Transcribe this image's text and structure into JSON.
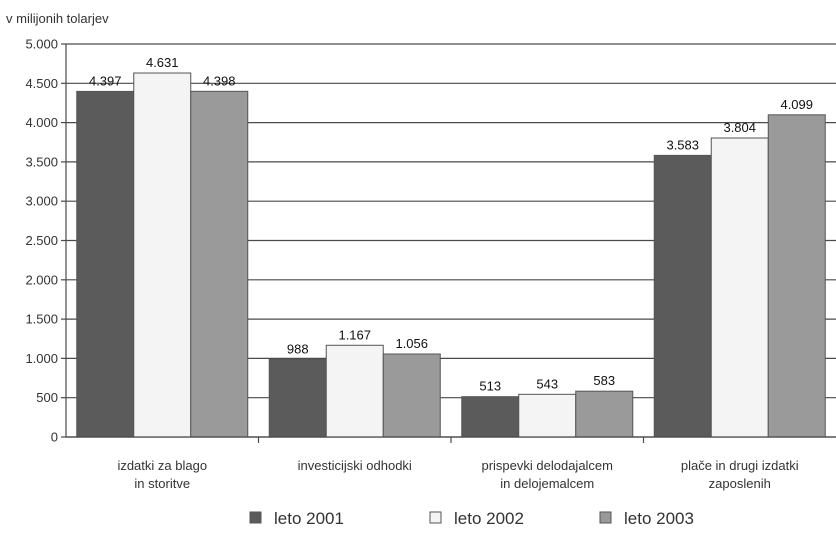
{
  "chart_data": {
    "type": "bar",
    "unit_label": "v milijonih tolarjev",
    "categories": [
      [
        "izdatki za blago",
        "in storitve"
      ],
      [
        "investicijski odhodki"
      ],
      [
        "prispevki delodajalcem",
        "in delojemalcem"
      ],
      [
        "plače in drugi izdatki",
        "zaposlenih"
      ]
    ],
    "series": [
      {
        "name": "leto 2001",
        "color": "#5b5b5b",
        "values": [
          4397,
          988,
          513,
          3583
        ],
        "labels": [
          "4.397",
          "988",
          "513",
          "3.583"
        ]
      },
      {
        "name": "leto 2002",
        "color": "#f4f4f4",
        "values": [
          4631,
          1167,
          543,
          3804
        ],
        "labels": [
          "4.631",
          "1.167",
          "543",
          "3.804"
        ]
      },
      {
        "name": "leto 2003",
        "color": "#9a9a9a",
        "values": [
          4398,
          1056,
          583,
          4099
        ],
        "labels": [
          "4.398",
          "1.056",
          "583",
          "4.099"
        ]
      }
    ],
    "yticks": [
      0,
      500,
      1000,
      1500,
      2000,
      2500,
      3000,
      3500,
      4000,
      4500,
      5000
    ],
    "ytick_labels": [
      "0",
      "500",
      "1.000",
      "1.500",
      "2.000",
      "2.500",
      "3.000",
      "3.500",
      "4.000",
      "4.500",
      "5.000"
    ],
    "ylim": [
      0,
      5000
    ],
    "grid": true,
    "legend": "bottom"
  }
}
